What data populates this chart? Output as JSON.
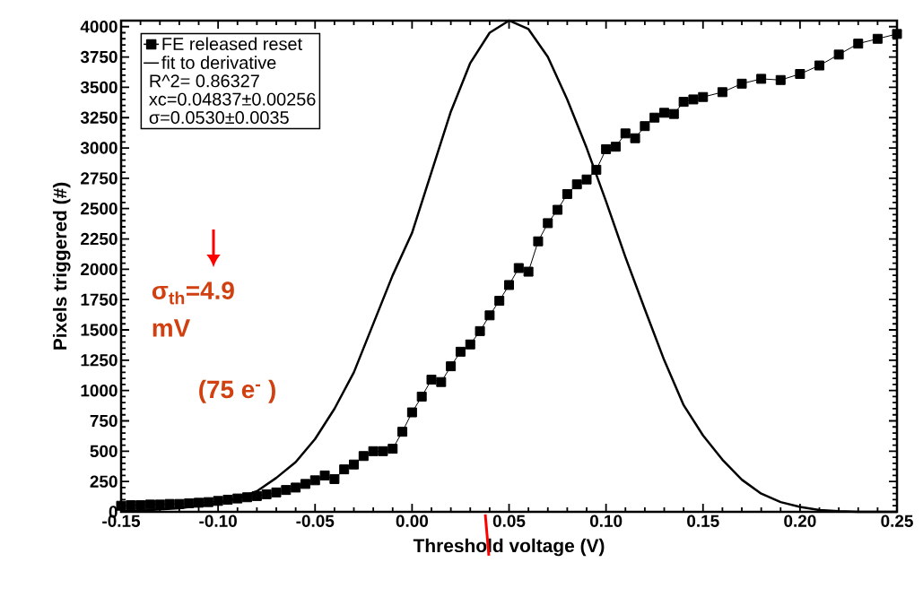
{
  "chart_data": {
    "type": "line",
    "xlabel": "Threshold voltage (V)",
    "ylabel": "Pixels triggered (#)",
    "xlim": [
      -0.15,
      0.25
    ],
    "ylim": [
      0,
      4050
    ],
    "xticks": [
      {
        "value": -0.15,
        "label": "-0.15"
      },
      {
        "value": -0.1,
        "label": "-0.10"
      },
      {
        "value": -0.05,
        "label": "-0.05"
      },
      {
        "value": 0,
        "label": "0.00"
      },
      {
        "value": 0.05,
        "label": "0.05"
      },
      {
        "value": 0.1,
        "label": "0.10"
      },
      {
        "value": 0.15,
        "label": "0.15"
      },
      {
        "value": 0.2,
        "label": "0.20"
      },
      {
        "value": 0.25,
        "label": "0.25"
      }
    ],
    "yticks": [
      0,
      250,
      500,
      750,
      1000,
      1250,
      1500,
      1750,
      2000,
      2250,
      2500,
      2750,
      3000,
      3250,
      3500,
      3750,
      4000
    ],
    "legend": "top left",
    "grid": false,
    "annotations": [
      "R^2=  0.86327",
      "xc=0.04837±0.00256",
      "σ=0.0530±0.0035",
      "σ$_{th}$=4.9 mV",
      "(75 e$^{-}$ )"
    ],
    "series": [
      {
        "name": "FE released reset",
        "color": "#000000",
        "marker": "square",
        "line_style": "solid",
        "x": [
          -0.15,
          -0.145,
          -0.14,
          -0.135,
          -0.13,
          -0.125,
          -0.12,
          -0.115,
          -0.11,
          -0.105,
          -0.1,
          -0.095,
          -0.09,
          -0.085,
          -0.08,
          -0.075,
          -0.07,
          -0.065,
          -0.06,
          -0.055,
          -0.05,
          -0.045,
          -0.04,
          -0.035,
          -0.03,
          -0.025,
          -0.02,
          -0.015,
          -0.01,
          -0.005,
          0,
          0.005,
          0.01,
          0.015,
          0.02,
          0.025,
          0.03,
          0.035,
          0.04,
          0.045,
          0.05,
          0.055,
          0.06,
          0.065,
          0.07,
          0.075,
          0.08,
          0.085,
          0.09,
          0.095,
          0.1,
          0.105,
          0.11,
          0.115,
          0.12,
          0.125,
          0.13,
          0.135,
          0.14,
          0.145,
          0.15,
          0.16,
          0.17,
          0.18,
          0.19,
          0.2,
          0.21,
          0.22,
          0.23,
          0.24,
          0.25
        ],
        "values": [
          50,
          55,
          55,
          60,
          60,
          65,
          65,
          70,
          75,
          80,
          90,
          100,
          110,
          120,
          130,
          145,
          160,
          180,
          200,
          230,
          260,
          300,
          270,
          350,
          390,
          460,
          500,
          500,
          520,
          660,
          820,
          950,
          1090,
          1070,
          1200,
          1320,
          1380,
          1490,
          1620,
          1740,
          1870,
          2010,
          1980,
          2230,
          2380,
          2490,
          2620,
          2700,
          2740,
          2820,
          2990,
          3010,
          3120,
          3080,
          3180,
          3250,
          3290,
          3280,
          3380,
          3400,
          3420,
          3460,
          3530,
          3570,
          3560,
          3610,
          3680,
          3770,
          3860,
          3900,
          3940
        ]
      },
      {
        "name": "fit to derivative",
        "color": "#000000",
        "marker": "none",
        "line_style": "solid",
        "x": [
          -0.15,
          -0.14,
          -0.13,
          -0.12,
          -0.11,
          -0.1,
          -0.09,
          -0.08,
          -0.07,
          -0.06,
          -0.05,
          -0.04,
          -0.03,
          -0.02,
          -0.01,
          0,
          0.01,
          0.02,
          0.03,
          0.04,
          0.05,
          0.06,
          0.07,
          0.08,
          0.09,
          0.1,
          0.11,
          0.12,
          0.13,
          0.14,
          0.15,
          0.16,
          0.17,
          0.18,
          0.19,
          0.2,
          0.21,
          0.22,
          0.23,
          0.24,
          0.25
        ],
        "values": [
          5,
          10,
          20,
          30,
          50,
          70,
          110,
          170,
          280,
          410,
          600,
          850,
          1150,
          1550,
          1950,
          2300,
          2800,
          3300,
          3700,
          3950,
          4050,
          3980,
          3750,
          3400,
          3000,
          2560,
          2100,
          1670,
          1250,
          880,
          630,
          430,
          265,
          150,
          80,
          40,
          15,
          5,
          0,
          0,
          0
        ]
      }
    ]
  }
}
